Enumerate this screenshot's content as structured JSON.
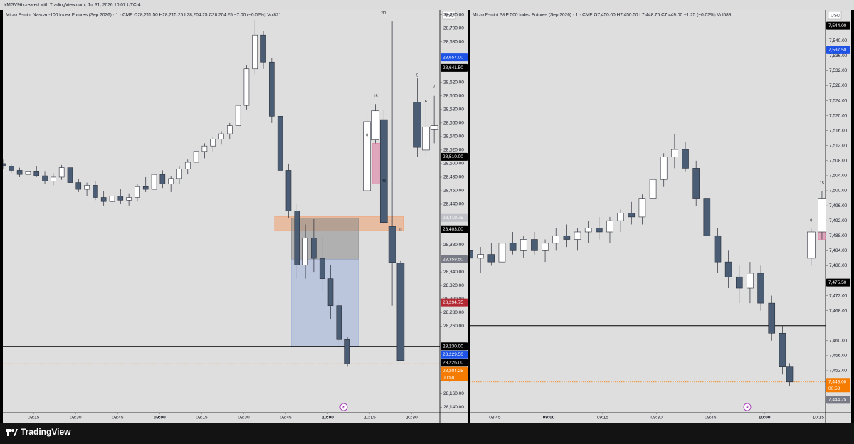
{
  "header": "YMGV96 created with TradingView.com, Jul 31, 2026 10:07 UTC-4",
  "footer_logo": "TradingView",
  "chart_data": [
    {
      "type": "candlestick",
      "title": "Micro E-mini Nasdaq-100 Index Futures (Sep 2026) · 1 · CME  O28,211.50  H28,215.25  L28,204.25  C28,204.25  −7.00 (−0.02%)  Vol821",
      "currency": "USD",
      "grid": false,
      "xlim": [
        "08:04",
        "10:40"
      ],
      "xticks": [
        "08:15",
        "08:30",
        "08:45",
        "09:00",
        "09:15",
        "09:30",
        "09:45",
        "10:00",
        "10:15",
        "10:30"
      ],
      "ylim": [
        28132,
        28727
      ],
      "yticks": [
        {
          "value": 28720,
          "label": "28,720.00"
        },
        {
          "value": 28700,
          "label": "28,700.00"
        },
        {
          "value": 28680,
          "label": "28,680.00"
        },
        {
          "value": 28620,
          "label": "28,620.00"
        },
        {
          "value": 28600,
          "label": "28,600.00"
        },
        {
          "value": 28580,
          "label": "28,580.00"
        },
        {
          "value": 28560,
          "label": "28,560.00"
        },
        {
          "value": 28540,
          "label": "28,540.00"
        },
        {
          "value": 28520,
          "label": "28,520.00"
        },
        {
          "value": 28500,
          "label": "28,500.00"
        },
        {
          "value": 28480,
          "label": "28,480.00"
        },
        {
          "value": 28460,
          "label": "28,460.00"
        },
        {
          "value": 28440,
          "label": "28,440.00"
        },
        {
          "value": 28380,
          "label": "28,380.00"
        },
        {
          "value": 28340,
          "label": "28,340.00"
        },
        {
          "value": 28320,
          "label": "28,320.00"
        },
        {
          "value": 28300,
          "label": "28,300.00"
        },
        {
          "value": 28280,
          "label": "28,280.00"
        },
        {
          "value": 28260,
          "label": "28,260.00"
        },
        {
          "value": 28180,
          "label": "28,180.00"
        },
        {
          "value": 28160,
          "label": "28,160.00"
        },
        {
          "value": 28140,
          "label": "28,140.00"
        }
      ],
      "up_color": "#ffffff",
      "down_color": "#4a5d75",
      "series": [
        {
          "x": [
            "08:04",
            "08:07",
            "08:10",
            "08:13",
            "08:16",
            "08:19",
            "08:22",
            "08:25",
            "08:28",
            "08:31",
            "08:34",
            "08:37",
            "08:40",
            "08:43",
            "08:46",
            "08:49",
            "08:52",
            "08:55",
            "08:58",
            "09:01",
            "09:04",
            "09:07",
            "09:10",
            "09:13",
            "09:16",
            "09:19",
            "09:22",
            "09:25",
            "09:28",
            "09:31",
            "09:34",
            "09:37",
            "09:40",
            "09:43",
            "09:46",
            "09:49",
            "09:52",
            "09:55",
            "09:58",
            "10:01",
            "10:04",
            "10:07"
          ],
          "open": [
            28500,
            28496,
            28490,
            28484,
            28488,
            28482,
            28474,
            28480,
            28494,
            28472,
            28462,
            28468,
            28450,
            28444,
            28452,
            28446,
            28450,
            28466,
            28462,
            28484,
            28470,
            28478,
            28492,
            28502,
            28518,
            28526,
            28536,
            28544,
            28556,
            28586,
            28640,
            28690,
            28650,
            28570,
            28490,
            28430,
            28350,
            28390,
            28360,
            28330,
            28290,
            28240
          ],
          "high": [
            28506,
            28500,
            28494,
            28492,
            28496,
            28488,
            28486,
            28498,
            28500,
            28478,
            28472,
            28474,
            28460,
            28456,
            28462,
            28456,
            28470,
            28480,
            28488,
            28490,
            28482,
            28496,
            28506,
            28522,
            28530,
            28540,
            28548,
            28560,
            28590,
            28646,
            28712,
            28696,
            28656,
            28576,
            28500,
            28440,
            28410,
            28418,
            28392,
            28350,
            28300,
            28244
          ],
          "low": [
            28492,
            28486,
            28480,
            28478,
            28480,
            28470,
            28468,
            28476,
            28470,
            28458,
            28452,
            28446,
            28438,
            28434,
            28440,
            28438,
            28444,
            28458,
            28456,
            28464,
            28458,
            28470,
            28484,
            28496,
            28508,
            28518,
            28528,
            28536,
            28550,
            28580,
            28632,
            28640,
            28560,
            28480,
            28420,
            28330,
            28330,
            28340,
            28310,
            28270,
            28230,
            28200
          ],
          "close": [
            28496,
            28490,
            28484,
            28488,
            28482,
            28474,
            28480,
            28494,
            28472,
            28462,
            28468,
            28450,
            28444,
            28452,
            28446,
            28450,
            28466,
            28462,
            28484,
            28470,
            28478,
            28492,
            28502,
            28518,
            28526,
            28536,
            28544,
            28556,
            28586,
            28640,
            28690,
            28650,
            28570,
            28490,
            28430,
            28350,
            28390,
            28360,
            28330,
            28290,
            28240,
            28204.25
          ]
        },
        {
          "x": [
            "10:14",
            "10:17",
            "10:20",
            "10:23",
            "10:26",
            "10:32",
            "10:35",
            "10:38"
          ],
          "open": [
            28460,
            28535,
            28565,
            28407,
            28353,
            28591,
            28520,
            28550
          ],
          "high": [
            28570,
            28588,
            28580,
            28710,
            28356,
            28626,
            28590,
            28600
          ],
          "low": [
            28455,
            28530,
            28410,
            28290,
            28209,
            28510,
            28510,
            28530
          ],
          "close": [
            28562,
            28578,
            28413,
            28354,
            28209,
            28524,
            28554,
            28556
          ]
        }
      ],
      "zones": [
        {
          "from": 28401,
          "to": 28422,
          "x0": "09:41",
          "x1": "10:27",
          "color": "#f0a070"
        },
        {
          "from": 28358.5,
          "to": 28419.75,
          "x0": "09:47",
          "x1": "10:11",
          "color": "#8a8a8a"
        },
        {
          "from": 28230,
          "to": 28358.5,
          "x0": "09:47",
          "x1": "10:11",
          "color": "#9fb0d8"
        },
        {
          "from": 28470,
          "to": 28530,
          "x0": "10:16",
          "x1": "10:21",
          "color": "#e07aa0"
        }
      ],
      "annotations": [
        {
          "text": "30",
          "x": "10:20",
          "y": 28722
        },
        {
          "text": "15",
          "x": "10:17",
          "y": 28600
        },
        {
          "text": "0",
          "x": "10:14",
          "y": 28542
        },
        {
          "text": "45",
          "x": "10:20",
          "y": 28474
        },
        {
          "text": "0",
          "x": "10:26",
          "y": 28402
        },
        {
          "text": "5",
          "x": "10:32",
          "y": 28630
        },
        {
          "text": "6",
          "x": "10:35",
          "y": 28592
        },
        {
          "text": "7",
          "x": "10:38",
          "y": 28614
        }
      ],
      "hlines": [
        {
          "value": 28230,
          "color": "#000000",
          "style": "solid"
        },
        {
          "value": 28204.25,
          "color": "#f57c00",
          "style": "dotted"
        }
      ],
      "price_tags": [
        {
          "value": 28657,
          "label": "28,657.00",
          "color": "#1e53e5"
        },
        {
          "value": 28641.5,
          "label": "28,641.50",
          "color": "#000000"
        },
        {
          "value": 28510,
          "label": "28,510.00",
          "color": "#000000"
        },
        {
          "value": 28419.75,
          "label": "28,419.75",
          "color": "#c0c0c8"
        },
        {
          "value": 28403,
          "label": "28,403.00",
          "color": "#000000"
        },
        {
          "value": 28358.5,
          "label": "28,358.50",
          "color": "#787b86"
        },
        {
          "value": 28294.75,
          "label": "28,294.75",
          "color": "#b22833"
        },
        {
          "value": 28230,
          "label": "28,230.00",
          "color": "#000000"
        },
        {
          "value": 28229.5,
          "label": "28,229.50",
          "color": "#1e53e5"
        },
        {
          "value": 28226,
          "label": "28,226.00",
          "color": "#000000"
        },
        {
          "value": 28204.25,
          "label": "28,204.25",
          "color": "#f57c00",
          "countdown": "00:58"
        }
      ]
    },
    {
      "type": "candlestick",
      "title": "Micro E-mini S&P 500 Index Futures (Sep 2026) · 1 · CME  O7,450.00  H7,450.50  L7,448.75  C7,449.00  −1.25 (−0.02%)  Vol588",
      "currency": "USD",
      "grid": false,
      "xlim": [
        "08:38",
        "10:17"
      ],
      "xticks": [
        "08:45",
        "09:00",
        "09:15",
        "09:30",
        "09:45",
        "10:00",
        "10:15"
      ],
      "ylim": [
        7440.8,
        7548.2
      ],
      "yticks": [
        {
          "value": 7540,
          "label": "7,540.00"
        },
        {
          "value": 7536,
          "label": "7,536.00"
        },
        {
          "value": 7532,
          "label": "7,532.00"
        },
        {
          "value": 7528,
          "label": "7,528.00"
        },
        {
          "value": 7524,
          "label": "7,524.00"
        },
        {
          "value": 7520,
          "label": "7,520.00"
        },
        {
          "value": 7516,
          "label": "7,516.00"
        },
        {
          "value": 7512,
          "label": "7,512.00"
        },
        {
          "value": 7508,
          "label": "7,508.00"
        },
        {
          "value": 7504,
          "label": "7,504.00"
        },
        {
          "value": 7500,
          "label": "7,500.00"
        },
        {
          "value": 7496,
          "label": "7,496.00"
        },
        {
          "value": 7492,
          "label": "7,492.00"
        },
        {
          "value": 7488,
          "label": "7,488.00"
        },
        {
          "value": 7484,
          "label": "7,484.00"
        },
        {
          "value": 7480,
          "label": "7,480.00"
        },
        {
          "value": 7472,
          "label": "7,472.00"
        },
        {
          "value": 7468,
          "label": "7,468.00"
        },
        {
          "value": 7460,
          "label": "7,460.00"
        },
        {
          "value": 7456,
          "label": "7,456.00"
        },
        {
          "value": 7452,
          "label": "7,452.00"
        }
      ],
      "up_color": "#ffffff",
      "down_color": "#4a5d75",
      "series": [
        {
          "x": [
            "08:38",
            "08:41",
            "08:44",
            "08:47",
            "08:50",
            "08:53",
            "08:56",
            "08:59",
            "09:02",
            "09:05",
            "09:08",
            "09:11",
            "09:14",
            "09:17",
            "09:20",
            "09:23",
            "09:26",
            "09:29",
            "09:32",
            "09:35",
            "09:38",
            "09:41",
            "09:44",
            "09:47",
            "09:50",
            "09:53",
            "09:56",
            "09:59",
            "10:02",
            "10:05",
            "10:07"
          ],
          "open": [
            7484,
            7482,
            7483,
            7481,
            7486,
            7484,
            7487,
            7484,
            7486,
            7488,
            7487,
            7489,
            7490,
            7489,
            7492,
            7494,
            7493,
            7498,
            7503,
            7509,
            7511,
            7506,
            7498,
            7488,
            7481,
            7477,
            7474,
            7478,
            7470,
            7462,
            7453
          ],
          "high": [
            7486,
            7485,
            7486,
            7487,
            7489,
            7488,
            7489,
            7487,
            7490,
            7491,
            7490,
            7492,
            7493,
            7493,
            7495,
            7497,
            7499,
            7504,
            7510,
            7515,
            7513,
            7508,
            7500,
            7490,
            7484,
            7480,
            7481,
            7480,
            7472,
            7464,
            7454
          ],
          "low": [
            7480,
            7478,
            7480,
            7479,
            7483,
            7482,
            7483,
            7481,
            7484,
            7485,
            7484,
            7486,
            7487,
            7486,
            7489,
            7491,
            7491,
            7496,
            7501,
            7506,
            7505,
            7496,
            7486,
            7478,
            7474,
            7470,
            7470,
            7468,
            7460,
            7451,
            7448
          ],
          "close": [
            7482,
            7483,
            7481,
            7486,
            7484,
            7487,
            7484,
            7486,
            7488,
            7487,
            7489,
            7490,
            7489,
            7492,
            7494,
            7493,
            7498,
            7503,
            7509,
            7511,
            7506,
            7498,
            7488,
            7481,
            7477,
            7474,
            7478,
            7470,
            7462,
            7453,
            7449
          ]
        },
        {
          "x": [
            "10:13",
            "10:16"
          ],
          "open": [
            7482,
            7489
          ],
          "high": [
            7490,
            7500
          ],
          "low": [
            7480,
            7487
          ],
          "close": [
            7489,
            7498
          ]
        }
      ],
      "zones": [
        {
          "from": 7487,
          "to": 7489.5,
          "x0": "10:15",
          "x1": "10:17",
          "color": "#e07aa0"
        }
      ],
      "annotations": [
        {
          "text": "0",
          "x": "10:13",
          "y": 7492
        },
        {
          "text": "15",
          "x": "10:16",
          "y": 7502
        }
      ],
      "hlines": [
        {
          "value": 7464,
          "color": "#000000",
          "style": "solid"
        },
        {
          "value": 7449,
          "color": "#f57c00",
          "style": "dotted"
        }
      ],
      "price_tags": [
        {
          "value": 7544,
          "label": "7,544.00",
          "color": "#000000"
        },
        {
          "value": 7537.5,
          "label": "7,537.50",
          "color": "#1e53e5"
        },
        {
          "value": 7475.5,
          "label": "7,475.50",
          "color": "#000000"
        },
        {
          "value": 7449,
          "label": "7,449.00",
          "color": "#f57c00",
          "countdown": "00:58"
        },
        {
          "value": 7444.25,
          "label": "7,444.25",
          "color": "#787b86"
        }
      ]
    }
  ]
}
